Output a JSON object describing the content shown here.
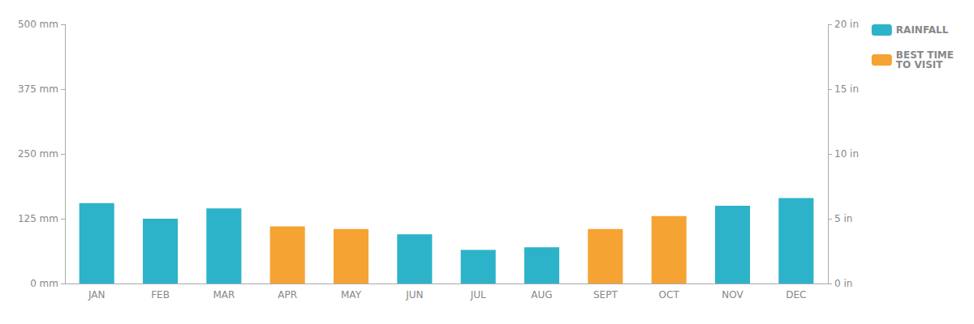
{
  "chart_data": {
    "type": "bar",
    "categories": [
      "JAN",
      "FEB",
      "MAR",
      "APR",
      "MAY",
      "JUN",
      "JUL",
      "AUG",
      "SEPT",
      "OCT",
      "NOV",
      "DEC"
    ],
    "series": [
      {
        "name": "RAINFALL",
        "color": "#2DB3C9",
        "values": [
          155,
          125,
          145,
          0,
          0,
          95,
          65,
          70,
          0,
          0,
          150,
          165
        ]
      },
      {
        "name": "BEST TIME\nTO VISIT",
        "color": "#F5A333",
        "values": [
          0,
          0,
          0,
          110,
          105,
          0,
          0,
          0,
          105,
          130,
          0,
          0
        ]
      }
    ],
    "ylim": [
      0,
      500
    ],
    "yticks": [
      {
        "value": 0,
        "label": "0 mm"
      },
      {
        "value": 125,
        "label": "125 mm"
      },
      {
        "value": 250,
        "label": "250 mm"
      },
      {
        "value": 375,
        "label": "375 mm"
      },
      {
        "value": 500,
        "label": "500 mm"
      }
    ],
    "y2lim": [
      0,
      20
    ],
    "y2ticks": [
      {
        "value": 0,
        "label": "0 in"
      },
      {
        "value": 5,
        "label": "5 in"
      },
      {
        "value": 10,
        "label": "10 in"
      },
      {
        "value": 15,
        "label": "15 in"
      },
      {
        "value": 20,
        "label": "20 in"
      }
    ],
    "grid": false,
    "legend": "upper right"
  }
}
